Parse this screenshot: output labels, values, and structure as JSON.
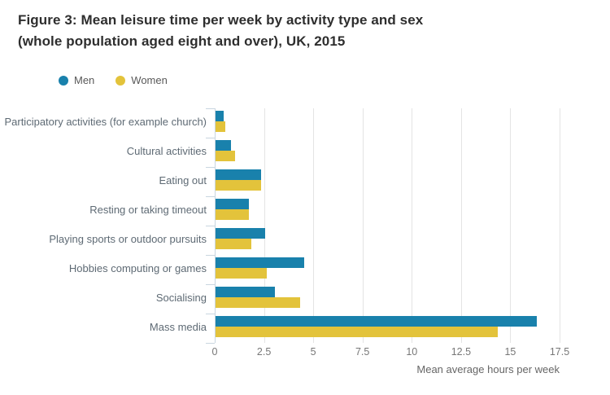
{
  "figure": {
    "title": "Figure 3: Mean leisure time per week by activity type and sex (whole population aged eight and over), UK, 2015"
  },
  "legend": {
    "items": [
      {
        "label": "Men",
        "color": "#1981ac"
      },
      {
        "label": "Women",
        "color": "#e3c33b"
      }
    ]
  },
  "chart_data": {
    "type": "bar",
    "orientation": "horizontal",
    "title": "Figure 3: Mean leisure time per week by activity type and sex (whole population aged eight and over), UK, 2015",
    "categories": [
      "Participatory activities (for example church)",
      "Cultural activities",
      "Eating out",
      "Resting or taking timeout",
      "Playing sports or outdoor pursuits",
      "Hobbies computing or games",
      "Socialising",
      "Mass media"
    ],
    "series": [
      {
        "name": "Men",
        "color": "#1981ac",
        "values": [
          0.4,
          0.8,
          2.3,
          1.7,
          2.5,
          4.5,
          3.0,
          16.3
        ]
      },
      {
        "name": "Women",
        "color": "#e3c33b",
        "values": [
          0.5,
          1.0,
          2.3,
          1.7,
          1.8,
          2.6,
          4.3,
          14.3
        ]
      }
    ],
    "xlabel": "Mean average hours per week",
    "ylabel": "",
    "xlim": [
      0,
      17.5
    ],
    "xticks": [
      0,
      2.5,
      5,
      7.5,
      10,
      12.5,
      15,
      17.5
    ],
    "grid": true,
    "legend_position": "top-left"
  }
}
